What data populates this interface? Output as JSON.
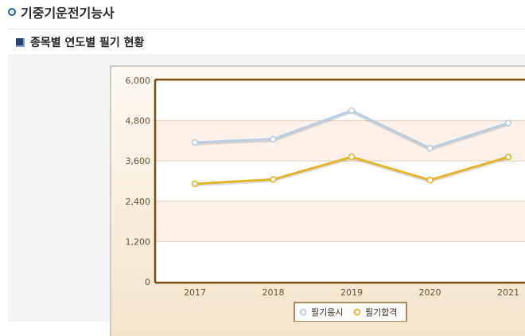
{
  "header": {
    "title": "기중기운전기능사"
  },
  "section": {
    "title": "종목별 연도별 필기 현황"
  },
  "chart_data": {
    "type": "line",
    "x": [
      "2017",
      "2018",
      "2019",
      "2020",
      "2021"
    ],
    "ylim": [
      0,
      6000
    ],
    "yticks": [
      0,
      1200,
      2400,
      3600,
      4800,
      6000
    ],
    "ytick_labels": [
      "0",
      "1,200",
      "2,400",
      "3,600",
      "4,800",
      "6,000"
    ],
    "series": [
      {
        "name": "필기응시",
        "values": [
          4150,
          4250,
          5100,
          3980,
          4730
        ],
        "color": "#b8cde2"
      },
      {
        "name": "필기합격",
        "values": [
          2920,
          3050,
          3720,
          3030,
          3720
        ],
        "color": "#e2b42e"
      }
    ],
    "grid": true,
    "legend": "bottom-center"
  }
}
